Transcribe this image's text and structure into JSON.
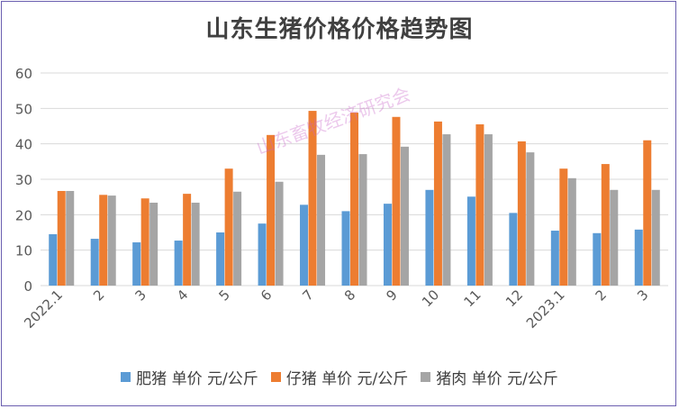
{
  "title": "山东生猪价格价格趋势图",
  "watermark": "山东畜牧经济研究会",
  "colors": {
    "series1": "#5b9bd5",
    "series2": "#ed7d31",
    "series3": "#a5a5a5",
    "grid": "#d9d9d9",
    "axis_text": "#595959",
    "border": "#6b5fb0"
  },
  "chart_data": {
    "type": "bar",
    "categories": [
      "2022.1",
      "2",
      "3",
      "4",
      "5",
      "6",
      "7",
      "8",
      "9",
      "10",
      "11",
      "12",
      "2023.1",
      "2",
      "3"
    ],
    "series": [
      {
        "name": "肥猪 单价 元/公斤",
        "values": [
          14.5,
          13.2,
          12.2,
          12.7,
          15.0,
          17.5,
          22.8,
          21.0,
          23.1,
          27.0,
          25.1,
          20.5,
          15.5,
          14.8,
          15.8
        ]
      },
      {
        "name": "仔猪 单价 元/公斤",
        "values": [
          26.7,
          25.6,
          24.6,
          25.9,
          33.0,
          42.5,
          49.3,
          48.8,
          47.6,
          46.3,
          45.5,
          40.7,
          33.0,
          34.3,
          41.0
        ]
      },
      {
        "name": "猪肉 单价 元/公斤",
        "values": [
          26.7,
          25.4,
          23.4,
          23.4,
          26.5,
          29.3,
          36.9,
          37.1,
          39.2,
          42.7,
          42.7,
          37.6,
          30.3,
          27.0,
          27.0
        ]
      }
    ],
    "yticks": [
      0,
      10,
      20,
      30,
      40,
      50,
      60
    ],
    "ylim": [
      0,
      60
    ],
    "grid": true,
    "legend_position": "bottom"
  }
}
